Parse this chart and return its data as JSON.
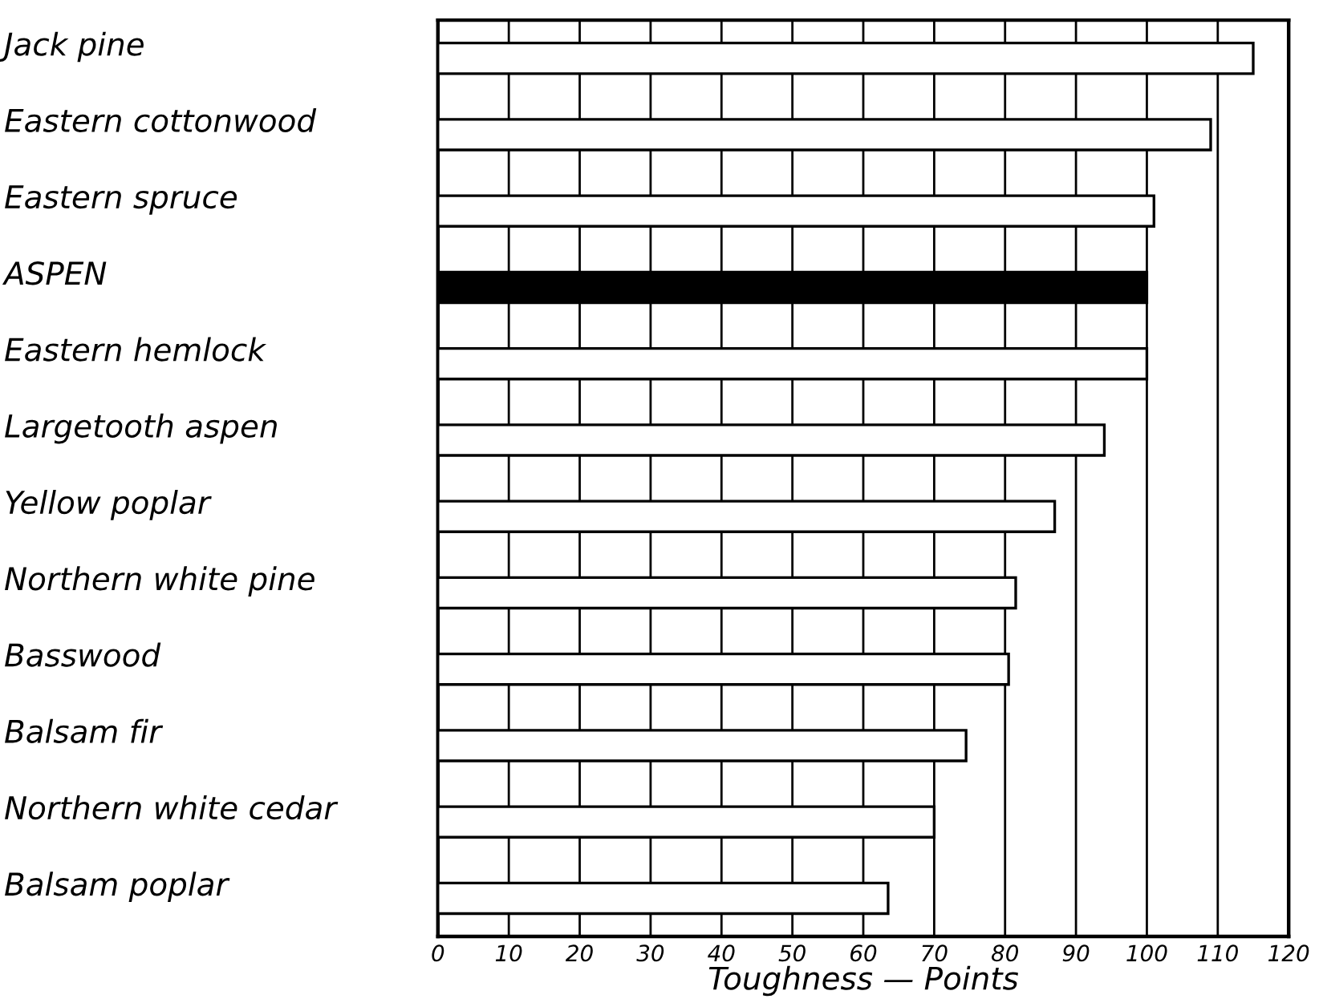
{
  "chart_data": {
    "type": "bar",
    "orientation": "horizontal",
    "xlabel": "Toughness — Points",
    "categories": [
      "Jack pine",
      "Eastern cottonwood",
      "Eastern spruce",
      "ASPEN",
      "Eastern hemlock",
      "Largetooth aspen",
      "Yellow poplar",
      "Northern white pine",
      "Basswood",
      "Balsam fir",
      "Northern white cedar",
      "Balsam poplar"
    ],
    "values": [
      115,
      109,
      101,
      100,
      100,
      94,
      87,
      81.5,
      80.5,
      74.5,
      70,
      63.5
    ],
    "colors": [
      "#ffffff",
      "#ffffff",
      "#ffffff",
      "#000000",
      "#ffffff",
      "#ffffff",
      "#ffffff",
      "#ffffff",
      "#ffffff",
      "#ffffff",
      "#ffffff",
      "#ffffff"
    ],
    "xlim": [
      0,
      120
    ],
    "xticks": [
      0,
      10,
      20,
      30,
      40,
      50,
      60,
      70,
      80,
      90,
      100,
      110,
      120
    ],
    "grid": "x"
  }
}
